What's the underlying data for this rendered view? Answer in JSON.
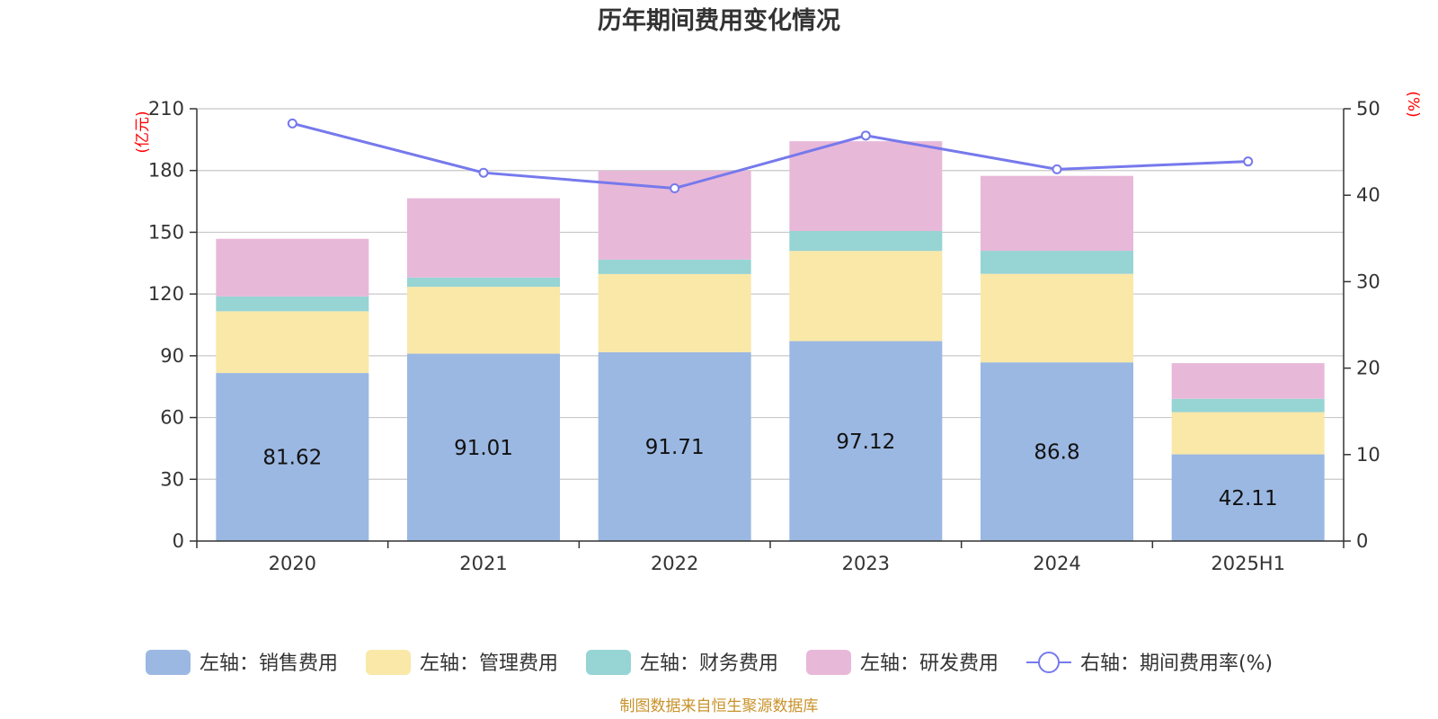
{
  "title": "历年期间费用变化情况",
  "source_note": "制图数据来自恒生聚源数据库",
  "left_unit": "(亿元)",
  "right_unit": "(%)",
  "chart_data": {
    "type": "bar",
    "stacked": true,
    "title": "历年期间费用变化情况",
    "categories": [
      "2020",
      "2021",
      "2022",
      "2023",
      "2024",
      "2025H1"
    ],
    "left_axis": {
      "unit": "(亿元)",
      "ylim": [
        0,
        210
      ],
      "ticks": [
        0,
        30,
        60,
        90,
        120,
        150,
        180,
        210
      ]
    },
    "right_axis": {
      "unit": "(%)",
      "ylim": [
        0,
        50
      ],
      "ticks": [
        0,
        10,
        20,
        30,
        40,
        50
      ]
    },
    "grid": true,
    "legend_position": "bottom",
    "series": [
      {
        "name": "左轴：销售费用",
        "axis": "left",
        "type": "bar",
        "color": "#9bb8e2",
        "values": [
          81.62,
          91.01,
          91.71,
          97.12,
          86.8,
          42.11
        ],
        "labels": [
          "81.62",
          "91.01",
          "91.71",
          "97.12",
          "86.8",
          "42.11"
        ]
      },
      {
        "name": "左轴：管理费用",
        "axis": "left",
        "type": "bar",
        "color": "#f9e8a8",
        "values": [
          30.0,
          32.5,
          38.0,
          43.8,
          43.0,
          20.5
        ]
      },
      {
        "name": "左轴：财务费用",
        "axis": "left",
        "type": "bar",
        "color": "#97d4d4",
        "values": [
          7.2,
          4.5,
          7.0,
          9.7,
          11.2,
          6.5
        ]
      },
      {
        "name": "左轴：研发费用",
        "axis": "left",
        "type": "bar",
        "color": "#e8b8d8",
        "values": [
          28.0,
          38.5,
          43.2,
          43.6,
          36.4,
          17.3
        ]
      },
      {
        "name": "右轴：期间费用率(%)",
        "axis": "right",
        "type": "line",
        "color": "#7679ec",
        "values": [
          48.3,
          42.6,
          40.8,
          46.9,
          43.0,
          43.9
        ]
      }
    ]
  }
}
